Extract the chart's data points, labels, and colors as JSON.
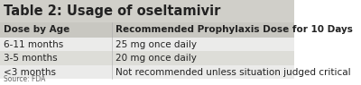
{
  "title": "Table 2: Usage of oseltamivir",
  "title_fontsize": 10.5,
  "title_color": "#222222",
  "title_bg": "#d0cfc9",
  "header": [
    "Dose by Age",
    "Recommended Prophylaxis Dose for 10 Days"
  ],
  "header_fontsize": 7.5,
  "rows": [
    [
      "6-11 months",
      "25 mg once daily"
    ],
    [
      "3-5 months",
      "20 mg once daily"
    ],
    [
      "<3 months",
      "Not recommended unless situation judged critical"
    ]
  ],
  "row_fontsize": 7.5,
  "source": "Source: FDA",
  "source_fontsize": 5.5,
  "col_split": 0.38,
  "bg_color": "#ffffff",
  "header_bg": "#c8c7c1",
  "row_bg_odd": "#ddddd8",
  "row_bg_even": "#ebebea",
  "border_color": "#aaaaaa",
  "text_color": "#222222"
}
